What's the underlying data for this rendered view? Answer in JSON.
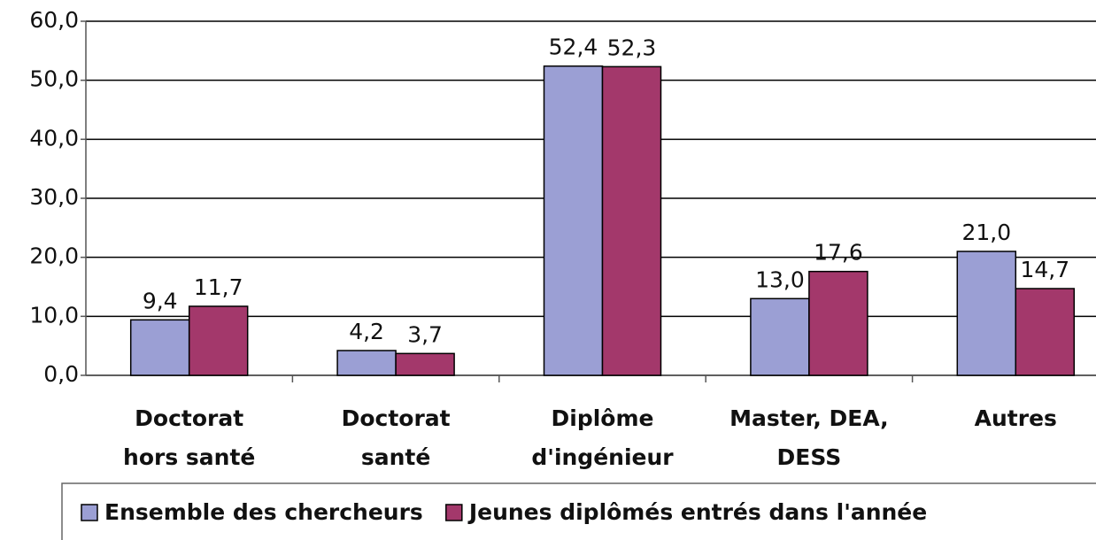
{
  "chart_data": {
    "type": "bar",
    "categories": [
      [
        "Doctorat",
        "hors santé"
      ],
      [
        "Doctorat",
        "santé"
      ],
      [
        "Diplôme",
        "d'ingénieur"
      ],
      [
        "Master, DEA,",
        "DESS"
      ],
      [
        "Autres"
      ]
    ],
    "series": [
      {
        "name": "Ensemble des chercheurs",
        "color": "#9b9fd4",
        "values": [
          9.4,
          4.2,
          52.4,
          13.0,
          21.0
        ],
        "value_labels": [
          "9,4",
          "4,2",
          "52,4",
          "13,0",
          "21,0"
        ]
      },
      {
        "name": "Jeunes diplômés entrés dans l'année",
        "color": "#a3386b",
        "values": [
          11.7,
          3.7,
          52.3,
          17.6,
          14.7
        ],
        "value_labels": [
          "11,7",
          "3,7",
          "52,3",
          "17,6",
          "14,7"
        ]
      }
    ],
    "ylim": [
      0,
      60
    ],
    "yticks": [
      {
        "value": 0,
        "label": "0,0"
      },
      {
        "value": 10,
        "label": "10,0"
      },
      {
        "value": 20,
        "label": "20,0"
      },
      {
        "value": 30,
        "label": "30,0"
      },
      {
        "value": 40,
        "label": "40,0"
      },
      {
        "value": 50,
        "label": "50,0"
      },
      {
        "value": 60,
        "label": "60,0"
      }
    ],
    "grid": true,
    "legend": "bottom"
  }
}
